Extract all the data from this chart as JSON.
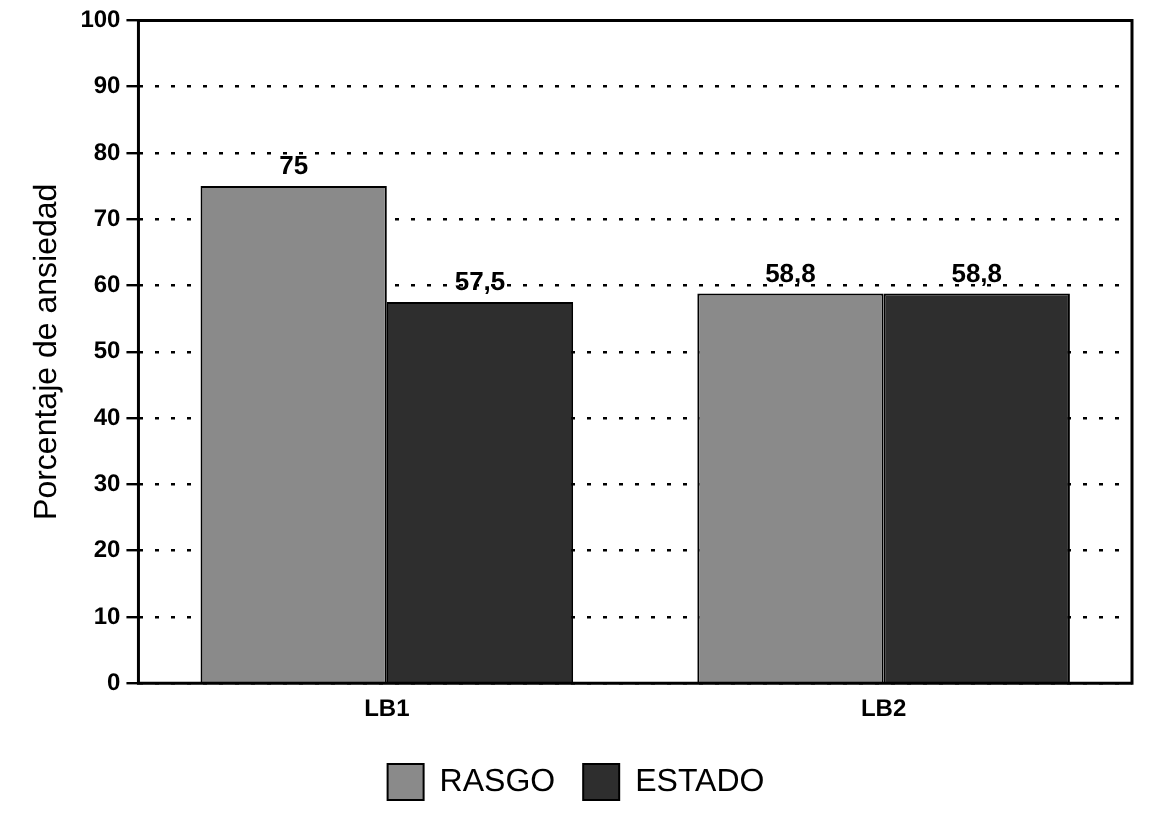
{
  "chart_data": {
    "type": "bar",
    "ylabel": "Porcentaje de ansiedad",
    "categories": [
      "LB1",
      "LB2"
    ],
    "series": [
      {
        "name": "RASGO",
        "color": "#8a8a8a",
        "values": [
          75,
          58.8
        ],
        "value_labels": [
          "75",
          "58,8"
        ]
      },
      {
        "name": "ESTADO",
        "color": "#2e2e2e",
        "values": [
          57.5,
          58.8
        ],
        "value_labels": [
          "57,5",
          "58,8"
        ]
      }
    ],
    "ylim": [
      0,
      100
    ],
    "yticks": [
      0,
      10,
      20,
      30,
      40,
      50,
      60,
      70,
      80,
      90,
      100
    ],
    "grid": "y",
    "legend": "bottom"
  }
}
